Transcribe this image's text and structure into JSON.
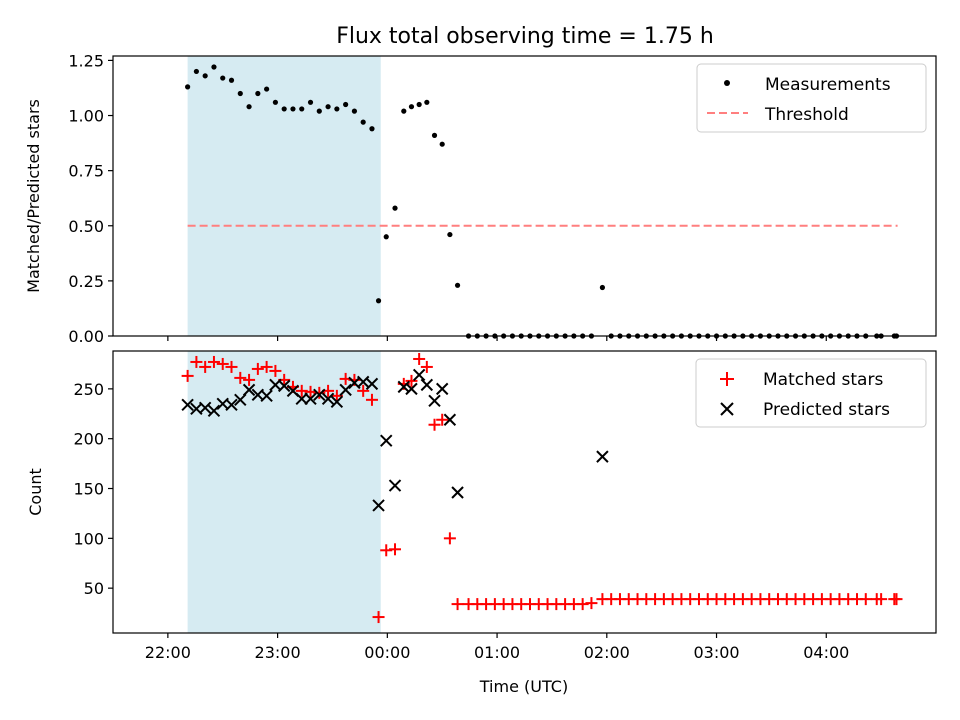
{
  "title": "Flux total observing time = 1.75 h",
  "colors": {
    "shade": "#add8e6",
    "measurement": "#000000",
    "threshold": "#ff7f7f",
    "matched": "#ff0000",
    "predicted": "#000000"
  },
  "shade_range_hours": [
    -1.82,
    -0.06
  ],
  "x_axis": {
    "label": "Time (UTC)",
    "range_hours": [
      -2.5,
      5.0
    ],
    "ticks": [
      {
        "value": -2,
        "label": "22:00"
      },
      {
        "value": -1,
        "label": "23:00"
      },
      {
        "value": 0,
        "label": "00:00"
      },
      {
        "value": 1,
        "label": "01:00"
      },
      {
        "value": 2,
        "label": "02:00"
      },
      {
        "value": 3,
        "label": "03:00"
      },
      {
        "value": 4,
        "label": "04:00"
      }
    ]
  },
  "chart_data": [
    {
      "type": "scatter",
      "panel": "top",
      "ylabel": "Matched/Predicted stars",
      "ylim": [
        0,
        1.27
      ],
      "yticks": [
        "0.00",
        "0.25",
        "0.50",
        "0.75",
        "1.00",
        "1.25"
      ],
      "threshold": {
        "name": "Threshold",
        "value": 0.5,
        "x_range": [
          -1.82,
          4.65
        ]
      },
      "legend": [
        "Measurements",
        "Threshold"
      ],
      "legend_position": "top-right",
      "series": [
        {
          "name": "Measurements",
          "points": [
            [
              -1.82,
              1.13
            ],
            [
              -1.74,
              1.2
            ],
            [
              -1.66,
              1.18
            ],
            [
              -1.58,
              1.22
            ],
            [
              -1.5,
              1.17
            ],
            [
              -1.42,
              1.16
            ],
            [
              -1.34,
              1.1
            ],
            [
              -1.26,
              1.04
            ],
            [
              -1.18,
              1.1
            ],
            [
              -1.1,
              1.12
            ],
            [
              -1.02,
              1.06
            ],
            [
              -0.94,
              1.03
            ],
            [
              -0.86,
              1.03
            ],
            [
              -0.78,
              1.03
            ],
            [
              -0.7,
              1.06
            ],
            [
              -0.62,
              1.02
            ],
            [
              -0.54,
              1.04
            ],
            [
              -0.46,
              1.03
            ],
            [
              -0.38,
              1.05
            ],
            [
              -0.3,
              1.02
            ],
            [
              -0.22,
              0.97
            ],
            [
              -0.14,
              0.94
            ],
            [
              -0.08,
              0.16
            ],
            [
              -0.01,
              0.45
            ],
            [
              0.07,
              0.58
            ],
            [
              0.15,
              1.02
            ],
            [
              0.22,
              1.04
            ],
            [
              0.29,
              1.05
            ],
            [
              0.36,
              1.06
            ],
            [
              0.43,
              0.91
            ],
            [
              0.5,
              0.87
            ],
            [
              0.57,
              0.46
            ],
            [
              0.64,
              0.23
            ],
            [
              0.74,
              0.0
            ],
            [
              0.82,
              0.0
            ],
            [
              0.9,
              0.0
            ],
            [
              0.98,
              0.0
            ],
            [
              1.06,
              0.0
            ],
            [
              1.14,
              0.0
            ],
            [
              1.22,
              0.0
            ],
            [
              1.3,
              0.0
            ],
            [
              1.38,
              0.0
            ],
            [
              1.46,
              0.0
            ],
            [
              1.54,
              0.0
            ],
            [
              1.62,
              0.0
            ],
            [
              1.7,
              0.0
            ],
            [
              1.78,
              0.0
            ],
            [
              1.86,
              0.0
            ],
            [
              1.96,
              0.22
            ],
            [
              2.04,
              0.0
            ],
            [
              2.12,
              0.0
            ],
            [
              2.2,
              0.0
            ],
            [
              2.28,
              0.0
            ],
            [
              2.36,
              0.0
            ],
            [
              2.44,
              0.0
            ],
            [
              2.52,
              0.0
            ],
            [
              2.6,
              0.0
            ],
            [
              2.68,
              0.0
            ],
            [
              2.76,
              0.0
            ],
            [
              2.84,
              0.0
            ],
            [
              2.92,
              0.0
            ],
            [
              3.0,
              0.0
            ],
            [
              3.08,
              0.0
            ],
            [
              3.16,
              0.0
            ],
            [
              3.24,
              0.0
            ],
            [
              3.32,
              0.0
            ],
            [
              3.4,
              0.0
            ],
            [
              3.48,
              0.0
            ],
            [
              3.56,
              0.0
            ],
            [
              3.64,
              0.0
            ],
            [
              3.72,
              0.0
            ],
            [
              3.8,
              0.0
            ],
            [
              3.88,
              0.0
            ],
            [
              3.96,
              0.0
            ],
            [
              4.04,
              0.0
            ],
            [
              4.12,
              0.0
            ],
            [
              4.2,
              0.0
            ],
            [
              4.28,
              0.0
            ],
            [
              4.36,
              0.0
            ],
            [
              4.46,
              0.0
            ],
            [
              4.5,
              0.0
            ],
            [
              4.62,
              0.0
            ],
            [
              4.64,
              0.0
            ]
          ]
        }
      ]
    },
    {
      "type": "scatter",
      "panel": "bottom",
      "ylabel": "Count",
      "ylim": [
        5,
        288
      ],
      "yticks": [
        "50",
        "100",
        "150",
        "200",
        "250"
      ],
      "legend": [
        "Matched stars",
        "Predicted stars"
      ],
      "legend_position": "top-right",
      "series": [
        {
          "name": "Matched stars",
          "points": [
            [
              -1.82,
              263
            ],
            [
              -1.74,
              277
            ],
            [
              -1.66,
              272
            ],
            [
              -1.58,
              277
            ],
            [
              -1.5,
              275
            ],
            [
              -1.42,
              272
            ],
            [
              -1.34,
              261
            ],
            [
              -1.26,
              259
            ],
            [
              -1.18,
              270
            ],
            [
              -1.1,
              272
            ],
            [
              -1.02,
              268
            ],
            [
              -0.94,
              259
            ],
            [
              -0.86,
              252
            ],
            [
              -0.78,
              248
            ],
            [
              -0.7,
              247
            ],
            [
              -0.62,
              246
            ],
            [
              -0.54,
              248
            ],
            [
              -0.46,
              243
            ],
            [
              -0.38,
              260
            ],
            [
              -0.3,
              259
            ],
            [
              -0.22,
              248
            ],
            [
              -0.14,
              239
            ],
            [
              -0.08,
              21
            ],
            [
              -0.01,
              88
            ],
            [
              0.07,
              89
            ],
            [
              0.15,
              255
            ],
            [
              0.22,
              258
            ],
            [
              0.29,
              280
            ],
            [
              0.36,
              272
            ],
            [
              0.43,
              214
            ],
            [
              0.5,
              219
            ],
            [
              0.57,
              100
            ],
            [
              0.64,
              34
            ],
            [
              0.74,
              34
            ],
            [
              0.82,
              34
            ],
            [
              0.9,
              34
            ],
            [
              0.98,
              34
            ],
            [
              1.06,
              34
            ],
            [
              1.14,
              34
            ],
            [
              1.22,
              34
            ],
            [
              1.3,
              34
            ],
            [
              1.38,
              34
            ],
            [
              1.46,
              34
            ],
            [
              1.54,
              34
            ],
            [
              1.62,
              34
            ],
            [
              1.7,
              34
            ],
            [
              1.78,
              34
            ],
            [
              1.86,
              35
            ],
            [
              1.96,
              39
            ],
            [
              2.04,
              39
            ],
            [
              2.12,
              39
            ],
            [
              2.2,
              39
            ],
            [
              2.28,
              39
            ],
            [
              2.36,
              39
            ],
            [
              2.44,
              39
            ],
            [
              2.52,
              39
            ],
            [
              2.6,
              39
            ],
            [
              2.68,
              39
            ],
            [
              2.76,
              39
            ],
            [
              2.84,
              39
            ],
            [
              2.92,
              39
            ],
            [
              3.0,
              39
            ],
            [
              3.08,
              39
            ],
            [
              3.16,
              39
            ],
            [
              3.24,
              39
            ],
            [
              3.32,
              39
            ],
            [
              3.4,
              39
            ],
            [
              3.48,
              39
            ],
            [
              3.56,
              39
            ],
            [
              3.64,
              39
            ],
            [
              3.72,
              39
            ],
            [
              3.8,
              39
            ],
            [
              3.88,
              39
            ],
            [
              3.96,
              39
            ],
            [
              4.04,
              39
            ],
            [
              4.12,
              39
            ],
            [
              4.2,
              39
            ],
            [
              4.28,
              39
            ],
            [
              4.36,
              39
            ],
            [
              4.46,
              39
            ],
            [
              4.5,
              39
            ],
            [
              4.62,
              39
            ],
            [
              4.64,
              39
            ]
          ]
        },
        {
          "name": "Predicted stars",
          "points": [
            [
              -1.82,
              234
            ],
            [
              -1.74,
              230
            ],
            [
              -1.66,
              231
            ],
            [
              -1.58,
              228
            ],
            [
              -1.5,
              235
            ],
            [
              -1.42,
              234
            ],
            [
              -1.34,
              239
            ],
            [
              -1.26,
              249
            ],
            [
              -1.18,
              244
            ],
            [
              -1.1,
              243
            ],
            [
              -1.02,
              254
            ],
            [
              -0.94,
              253
            ],
            [
              -0.86,
              248
            ],
            [
              -0.78,
              240
            ],
            [
              -0.7,
              240
            ],
            [
              -0.62,
              244
            ],
            [
              -0.54,
              240
            ],
            [
              -0.46,
              237
            ],
            [
              -0.38,
              249
            ],
            [
              -0.3,
              256
            ],
            [
              -0.22,
              257
            ],
            [
              -0.14,
              255
            ],
            [
              -0.08,
              133
            ],
            [
              -0.01,
              198
            ],
            [
              0.07,
              153
            ],
            [
              0.15,
              252
            ],
            [
              0.22,
              250
            ],
            [
              0.29,
              264
            ],
            [
              0.36,
              254
            ],
            [
              0.43,
              238
            ],
            [
              0.5,
              250
            ],
            [
              0.57,
              219
            ],
            [
              0.64,
              146
            ],
            [
              1.96,
              182
            ]
          ]
        }
      ]
    }
  ]
}
